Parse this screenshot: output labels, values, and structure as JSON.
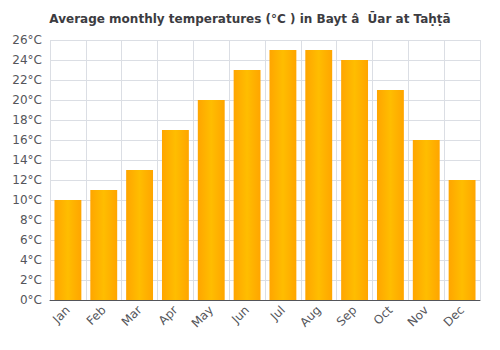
{
  "chart_data": {
    "type": "bar",
    "title": "Average monthly temperatures (°C ) in Bayt â  Ūar at Taḥṭā",
    "categories": [
      "Jan",
      "Feb",
      "Mar",
      "Apr",
      "May",
      "Jun",
      "Jul",
      "Aug",
      "Sep",
      "Oct",
      "Nov",
      "Dec"
    ],
    "values": [
      10,
      11,
      13,
      17,
      20,
      23,
      25,
      25,
      24,
      21,
      16,
      12
    ],
    "color": "#FFA500",
    "ylim": [
      0,
      26
    ],
    "yticks": [
      {
        "value": 0,
        "label": "0°C"
      },
      {
        "value": 2,
        "label": "2°C"
      },
      {
        "value": 4,
        "label": "4°C"
      },
      {
        "value": 6,
        "label": "6°C"
      },
      {
        "value": 8,
        "label": "8°C"
      },
      {
        "value": 10,
        "label": "10°C"
      },
      {
        "value": 12,
        "label": "12°C"
      },
      {
        "value": 14,
        "label": "14°C"
      },
      {
        "value": 16,
        "label": "16°C"
      },
      {
        "value": 18,
        "label": "18°C"
      },
      {
        "value": 20,
        "label": "20°C"
      },
      {
        "value": 22,
        "label": "22°C"
      },
      {
        "value": 24,
        "label": "24°C"
      },
      {
        "value": 26,
        "label": "26°C"
      }
    ],
    "grid": true
  }
}
